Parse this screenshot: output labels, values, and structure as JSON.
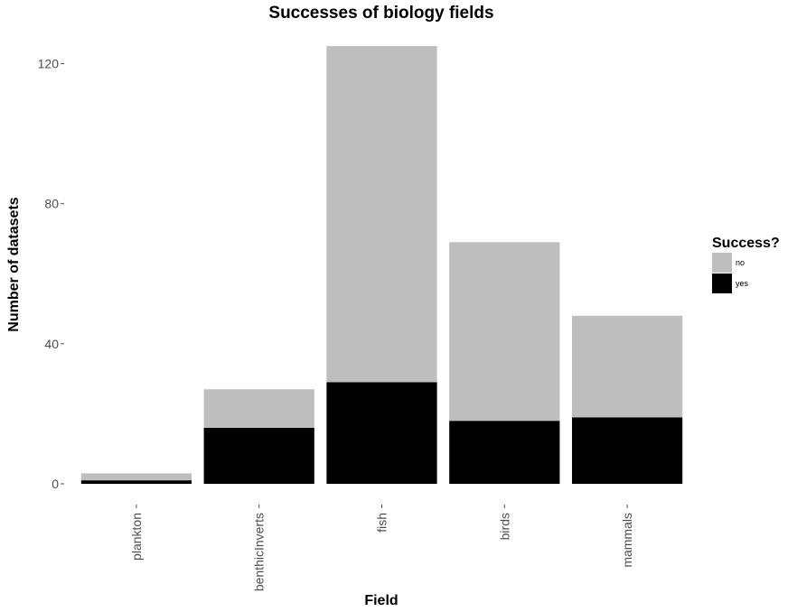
{
  "chart_data": {
    "type": "bar",
    "stacked": true,
    "title": "Successes of biology fields",
    "xlabel": "Field",
    "ylabel": "Number of datasets",
    "categories": [
      "plankton",
      "benthicInverts",
      "fish",
      "birds",
      "mammals"
    ],
    "series": [
      {
        "name": "yes",
        "color": "#000000",
        "values": [
          1,
          16,
          29,
          18,
          19
        ]
      },
      {
        "name": "no",
        "color": "#bebebe",
        "values": [
          2,
          11,
          96,
          51,
          29
        ]
      }
    ],
    "yticks": [
      0,
      40,
      80,
      120
    ],
    "ylim": [
      0,
      125
    ],
    "grid": false,
    "legend": {
      "title": "Success?",
      "position": "right",
      "order": [
        "no",
        "yes"
      ]
    }
  }
}
